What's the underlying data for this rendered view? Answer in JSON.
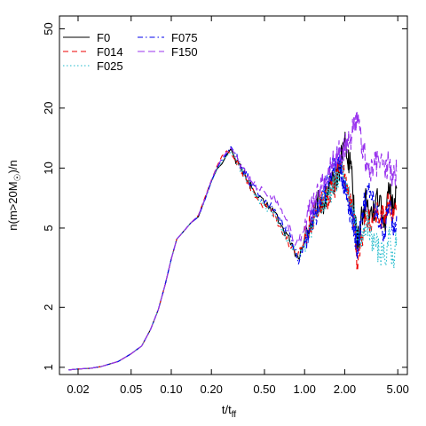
{
  "chart_data": {
    "type": "line",
    "title": "",
    "xlabel": {
      "main": "t/t",
      "sub": "ff"
    },
    "ylabel": {
      "main": "n(m>20M",
      "sun": "☉",
      "tail": ")/n"
    },
    "xscale": "log",
    "yscale": "log",
    "xlim": [
      0.0145,
      5.9
    ],
    "ylim": [
      0.92,
      58
    ],
    "xticks": [
      {
        "value": 0.02,
        "label": "0.02"
      },
      {
        "value": 0.05,
        "label": "0.05"
      },
      {
        "value": 0.1,
        "label": "0.10"
      },
      {
        "value": 0.2,
        "label": "0.20"
      },
      {
        "value": 0.5,
        "label": "0.50"
      },
      {
        "value": 1.0,
        "label": "1.00"
      },
      {
        "value": 2.0,
        "label": "2.00"
      },
      {
        "value": 5.0,
        "label": "5.00"
      }
    ],
    "yticks": [
      {
        "value": 1,
        "label": "1"
      },
      {
        "value": 2,
        "label": "2"
      },
      {
        "value": 5,
        "label": "5"
      },
      {
        "value": 10,
        "label": "10"
      },
      {
        "value": 20,
        "label": "20"
      },
      {
        "value": 50,
        "label": "50"
      }
    ],
    "grid": false,
    "legend": {
      "position": "top-left",
      "columns": 2
    },
    "series": [
      {
        "name": "F0",
        "color": "#000000",
        "dash": "",
        "x": [
          0.017,
          0.02,
          0.025,
          0.03,
          0.04,
          0.05,
          0.06,
          0.07,
          0.08,
          0.09,
          0.1,
          0.11,
          0.12,
          0.14,
          0.16,
          0.18,
          0.2,
          0.22,
          0.24,
          0.26,
          0.28,
          0.3,
          0.32,
          0.34,
          0.36,
          0.38,
          0.4,
          0.45,
          0.5,
          0.55,
          0.6,
          0.65,
          0.7,
          0.75,
          0.8,
          0.85,
          0.9,
          0.95,
          1.0,
          1.1,
          1.2,
          1.3,
          1.4,
          1.5,
          1.6,
          1.7,
          1.8,
          1.9,
          2.0,
          2.1,
          2.2,
          2.3,
          2.4,
          2.5,
          2.7,
          2.9,
          3.1,
          3.4,
          3.7,
          4.0,
          4.3,
          4.6,
          4.9
        ],
        "y": [
          0.97,
          0.98,
          0.99,
          1.01,
          1.07,
          1.17,
          1.28,
          1.55,
          1.95,
          2.6,
          3.5,
          4.4,
          4.7,
          5.3,
          5.7,
          7.1,
          8.6,
          9.9,
          10.5,
          11.6,
          12.5,
          11.2,
          10.5,
          9.7,
          9.2,
          8.6,
          8.0,
          7.1,
          6.6,
          6.4,
          6.0,
          5.3,
          4.8,
          4.6,
          4.2,
          3.6,
          3.5,
          3.9,
          4.4,
          5.3,
          6.1,
          7.0,
          6.6,
          7.8,
          8.3,
          8.9,
          9.5,
          11.5,
          14.2,
          10.6,
          11.2,
          7.5,
          5.8,
          4.2,
          5.8,
          6.9,
          6.0,
          6.5,
          7.3,
          5.2,
          7.6,
          6.4,
          7.9
        ]
      },
      {
        "name": "F014",
        "color": "#ee0000",
        "dash": "6,4",
        "x": [
          0.017,
          0.02,
          0.025,
          0.03,
          0.04,
          0.05,
          0.06,
          0.07,
          0.08,
          0.09,
          0.1,
          0.11,
          0.12,
          0.14,
          0.16,
          0.18,
          0.2,
          0.22,
          0.24,
          0.26,
          0.28,
          0.3,
          0.32,
          0.34,
          0.36,
          0.38,
          0.4,
          0.45,
          0.5,
          0.55,
          0.6,
          0.65,
          0.7,
          0.75,
          0.8,
          0.85,
          0.9,
          0.95,
          1.0,
          1.1,
          1.2,
          1.3,
          1.4,
          1.5,
          1.6,
          1.7,
          1.8,
          1.9,
          2.0,
          2.1,
          2.2,
          2.3,
          2.4,
          2.5,
          2.7,
          2.9,
          3.1,
          3.4,
          3.7,
          4.0,
          4.3,
          4.6,
          4.9
        ],
        "y": [
          0.97,
          0.98,
          0.99,
          1.01,
          1.07,
          1.17,
          1.28,
          1.55,
          1.95,
          2.6,
          3.5,
          4.4,
          4.7,
          5.3,
          5.8,
          7.2,
          8.7,
          10.2,
          11.5,
          12.2,
          11.8,
          11.0,
          10.2,
          9.5,
          8.9,
          8.3,
          7.7,
          6.9,
          6.4,
          6.3,
          5.8,
          5.1,
          4.6,
          4.3,
          4.0,
          3.7,
          3.8,
          4.0,
          4.5,
          5.1,
          6.0,
          6.5,
          6.9,
          7.2,
          7.7,
          8.4,
          9.8,
          10.5,
          9.0,
          8.2,
          7.0,
          5.8,
          4.8,
          3.1,
          4.5,
          5.8,
          5.2,
          6.0,
          5.5,
          5.8,
          6.8,
          5.5,
          6.2
        ]
      },
      {
        "name": "F025",
        "color": "#22bbcc",
        "dash": "1.5,2.5",
        "x": [
          0.017,
          0.02,
          0.025,
          0.03,
          0.04,
          0.05,
          0.06,
          0.07,
          0.08,
          0.09,
          0.1,
          0.11,
          0.12,
          0.14,
          0.16,
          0.18,
          0.2,
          0.22,
          0.24,
          0.26,
          0.28,
          0.3,
          0.32,
          0.34,
          0.36,
          0.38,
          0.4,
          0.45,
          0.5,
          0.55,
          0.6,
          0.65,
          0.7,
          0.75,
          0.8,
          0.85,
          0.9,
          0.95,
          1.0,
          1.1,
          1.2,
          1.3,
          1.4,
          1.5,
          1.6,
          1.7,
          1.8,
          1.9,
          2.0,
          2.1,
          2.2,
          2.3,
          2.4,
          2.5,
          2.7,
          2.9,
          3.1,
          3.4,
          3.7,
          4.0,
          4.3,
          4.6,
          4.9
        ],
        "y": [
          0.97,
          0.98,
          0.99,
          1.01,
          1.07,
          1.17,
          1.28,
          1.55,
          1.95,
          2.6,
          3.5,
          4.4,
          4.7,
          5.3,
          5.7,
          7.0,
          8.5,
          9.8,
          10.8,
          11.5,
          12.0,
          11.3,
          10.4,
          9.6,
          9.0,
          8.5,
          7.9,
          7.0,
          6.5,
          6.2,
          5.9,
          5.2,
          4.6,
          4.4,
          4.1,
          3.8,
          3.6,
          3.8,
          4.2,
          5.0,
          5.7,
          6.6,
          6.8,
          7.4,
          7.9,
          8.6,
          9.2,
          10.0,
          8.5,
          7.6,
          6.8,
          6.0,
          5.1,
          4.3,
          4.8,
          5.5,
          4.6,
          4.2,
          3.7,
          3.5,
          4.6,
          3.4,
          4.5
        ]
      },
      {
        "name": "F075",
        "color": "#0000ee",
        "dash": "6,3,1.5,3",
        "x": [
          0.017,
          0.02,
          0.025,
          0.03,
          0.04,
          0.05,
          0.06,
          0.07,
          0.08,
          0.09,
          0.1,
          0.11,
          0.12,
          0.14,
          0.16,
          0.18,
          0.2,
          0.22,
          0.24,
          0.26,
          0.28,
          0.3,
          0.32,
          0.34,
          0.36,
          0.38,
          0.4,
          0.45,
          0.5,
          0.55,
          0.6,
          0.65,
          0.7,
          0.75,
          0.8,
          0.85,
          0.9,
          0.95,
          1.0,
          1.1,
          1.2,
          1.3,
          1.4,
          1.5,
          1.6,
          1.7,
          1.8,
          1.9,
          2.0,
          2.1,
          2.2,
          2.3,
          2.4,
          2.5,
          2.7,
          2.9,
          3.1,
          3.4,
          3.7,
          4.0,
          4.3,
          4.6,
          4.9
        ],
        "y": [
          0.97,
          0.98,
          0.99,
          1.01,
          1.07,
          1.17,
          1.28,
          1.55,
          1.95,
          2.6,
          3.5,
          4.4,
          4.7,
          5.3,
          5.7,
          7.0,
          8.6,
          10.0,
          11.0,
          11.8,
          12.8,
          11.9,
          10.9,
          10.1,
          9.4,
          8.8,
          8.2,
          7.3,
          6.7,
          6.5,
          6.2,
          5.6,
          5.0,
          4.8,
          4.4,
          3.9,
          3.3,
          3.8,
          4.3,
          5.2,
          5.9,
          6.8,
          7.5,
          8.7,
          9.8,
          10.6,
          11.3,
          9.5,
          8.1,
          7.0,
          6.2,
          5.4,
          4.6,
          3.9,
          6.0,
          7.2,
          7.8,
          5.9,
          5.3,
          4.7,
          6.8,
          5.1,
          5.8
        ]
      },
      {
        "name": "F150",
        "color": "#9933ee",
        "dash": "8,4",
        "x": [
          0.017,
          0.02,
          0.025,
          0.03,
          0.04,
          0.05,
          0.06,
          0.07,
          0.08,
          0.09,
          0.1,
          0.11,
          0.12,
          0.14,
          0.16,
          0.18,
          0.2,
          0.22,
          0.24,
          0.26,
          0.28,
          0.3,
          0.32,
          0.34,
          0.36,
          0.38,
          0.4,
          0.45,
          0.5,
          0.55,
          0.6,
          0.65,
          0.7,
          0.75,
          0.8,
          0.85,
          0.9,
          0.95,
          1.0,
          1.1,
          1.2,
          1.3,
          1.4,
          1.5,
          1.6,
          1.7,
          1.8,
          1.9,
          2.0,
          2.1,
          2.2,
          2.3,
          2.4,
          2.5,
          2.7,
          2.9,
          3.1,
          3.4,
          3.7,
          4.0,
          4.3,
          4.6,
          4.9
        ],
        "y": [
          0.97,
          0.98,
          0.99,
          1.01,
          1.07,
          1.17,
          1.28,
          1.55,
          1.95,
          2.6,
          3.5,
          4.4,
          4.7,
          5.3,
          5.8,
          7.1,
          8.7,
          10.1,
          11.2,
          12.0,
          12.6,
          11.8,
          10.8,
          10.0,
          9.4,
          9.0,
          8.6,
          8.0,
          7.6,
          7.3,
          7.0,
          6.5,
          5.8,
          5.2,
          4.7,
          4.1,
          4.3,
          4.6,
          5.2,
          6.0,
          6.8,
          7.8,
          8.8,
          9.6,
          10.4,
          11.2,
          12.0,
          11.0,
          12.5,
          14.0,
          13.8,
          15.2,
          16.5,
          17.0,
          13.0,
          10.8,
          9.5,
          10.4,
          11.2,
          9.5,
          10.8,
          8.6,
          9.6
        ]
      }
    ]
  }
}
